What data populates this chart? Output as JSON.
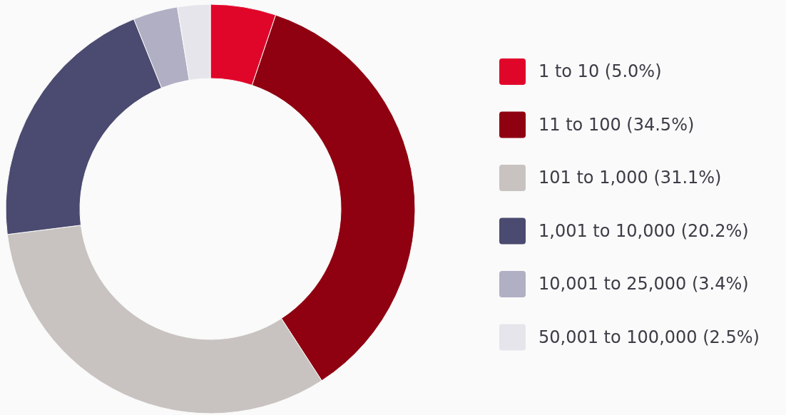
{
  "chart_data": {
    "type": "donut",
    "categories": [
      "1 to 10 (5.0%)",
      "11 to 100 (34.5%)",
      "101 to 1,000 (31.1%)",
      "1,001 to 10,000 (20.2%)",
      "10,001 to 25,000 (3.4%)",
      "50,001 to 100,000 (2.5%)"
    ],
    "values": [
      5.0,
      34.5,
      31.1,
      20.2,
      3.4,
      2.5
    ],
    "colors": [
      "#e0062a",
      "#8f0010",
      "#c8c3c0",
      "#4b4a70",
      "#b0afc4",
      "#e6e5eb"
    ],
    "legend": "right"
  }
}
